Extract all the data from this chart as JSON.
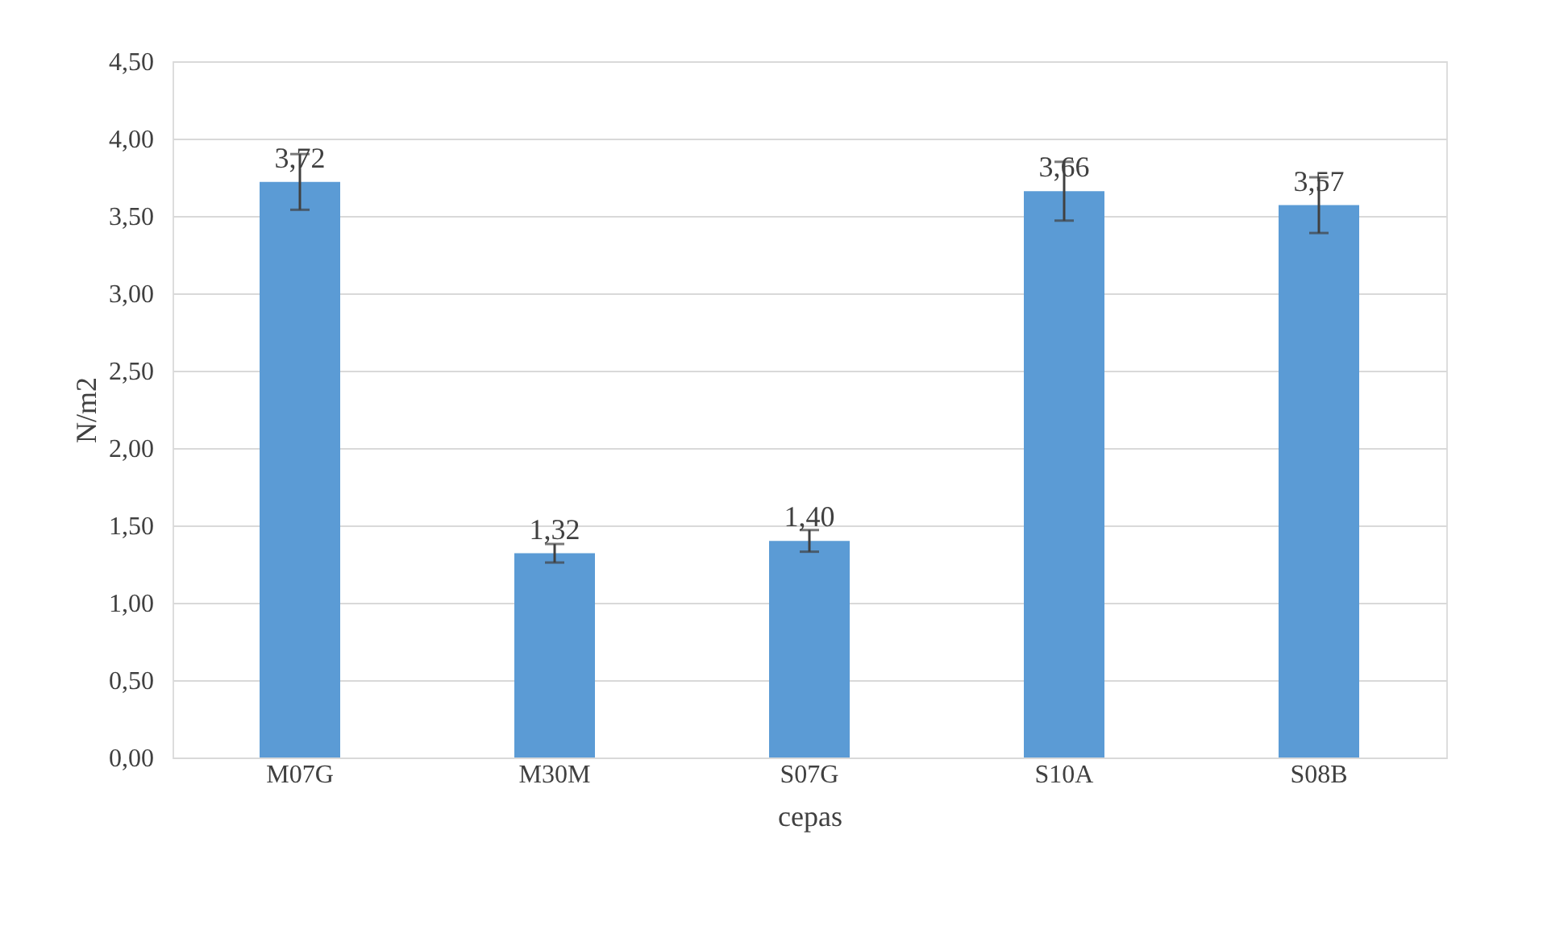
{
  "chart_data": {
    "type": "bar",
    "xlabel": "cepas",
    "ylabel": "N/m2",
    "categories": [
      "M07G",
      "M30M",
      "S07G",
      "S10A",
      "S08B"
    ],
    "values": [
      3.72,
      1.32,
      1.4,
      3.66,
      3.57
    ],
    "errors": [
      0.18,
      0.06,
      0.07,
      0.19,
      0.18
    ],
    "value_labels": [
      "3,72",
      "1,32",
      "1,40",
      "3,66",
      "3,57"
    ],
    "color": "#5b9bd5",
    "ylim": [
      0,
      4.5
    ],
    "yticks": [
      {
        "value": 0,
        "label": "0,00"
      },
      {
        "value": 0.5,
        "label": "0,50"
      },
      {
        "value": 1,
        "label": "1,00"
      },
      {
        "value": 1.5,
        "label": "1,50"
      },
      {
        "value": 2,
        "label": "2,00"
      },
      {
        "value": 2.5,
        "label": "2,50"
      },
      {
        "value": 3,
        "label": "3,00"
      },
      {
        "value": 3.5,
        "label": "3,50"
      },
      {
        "value": 4,
        "label": "4,00"
      },
      {
        "value": 4.5,
        "label": "4,50"
      }
    ],
    "grid": "y"
  }
}
